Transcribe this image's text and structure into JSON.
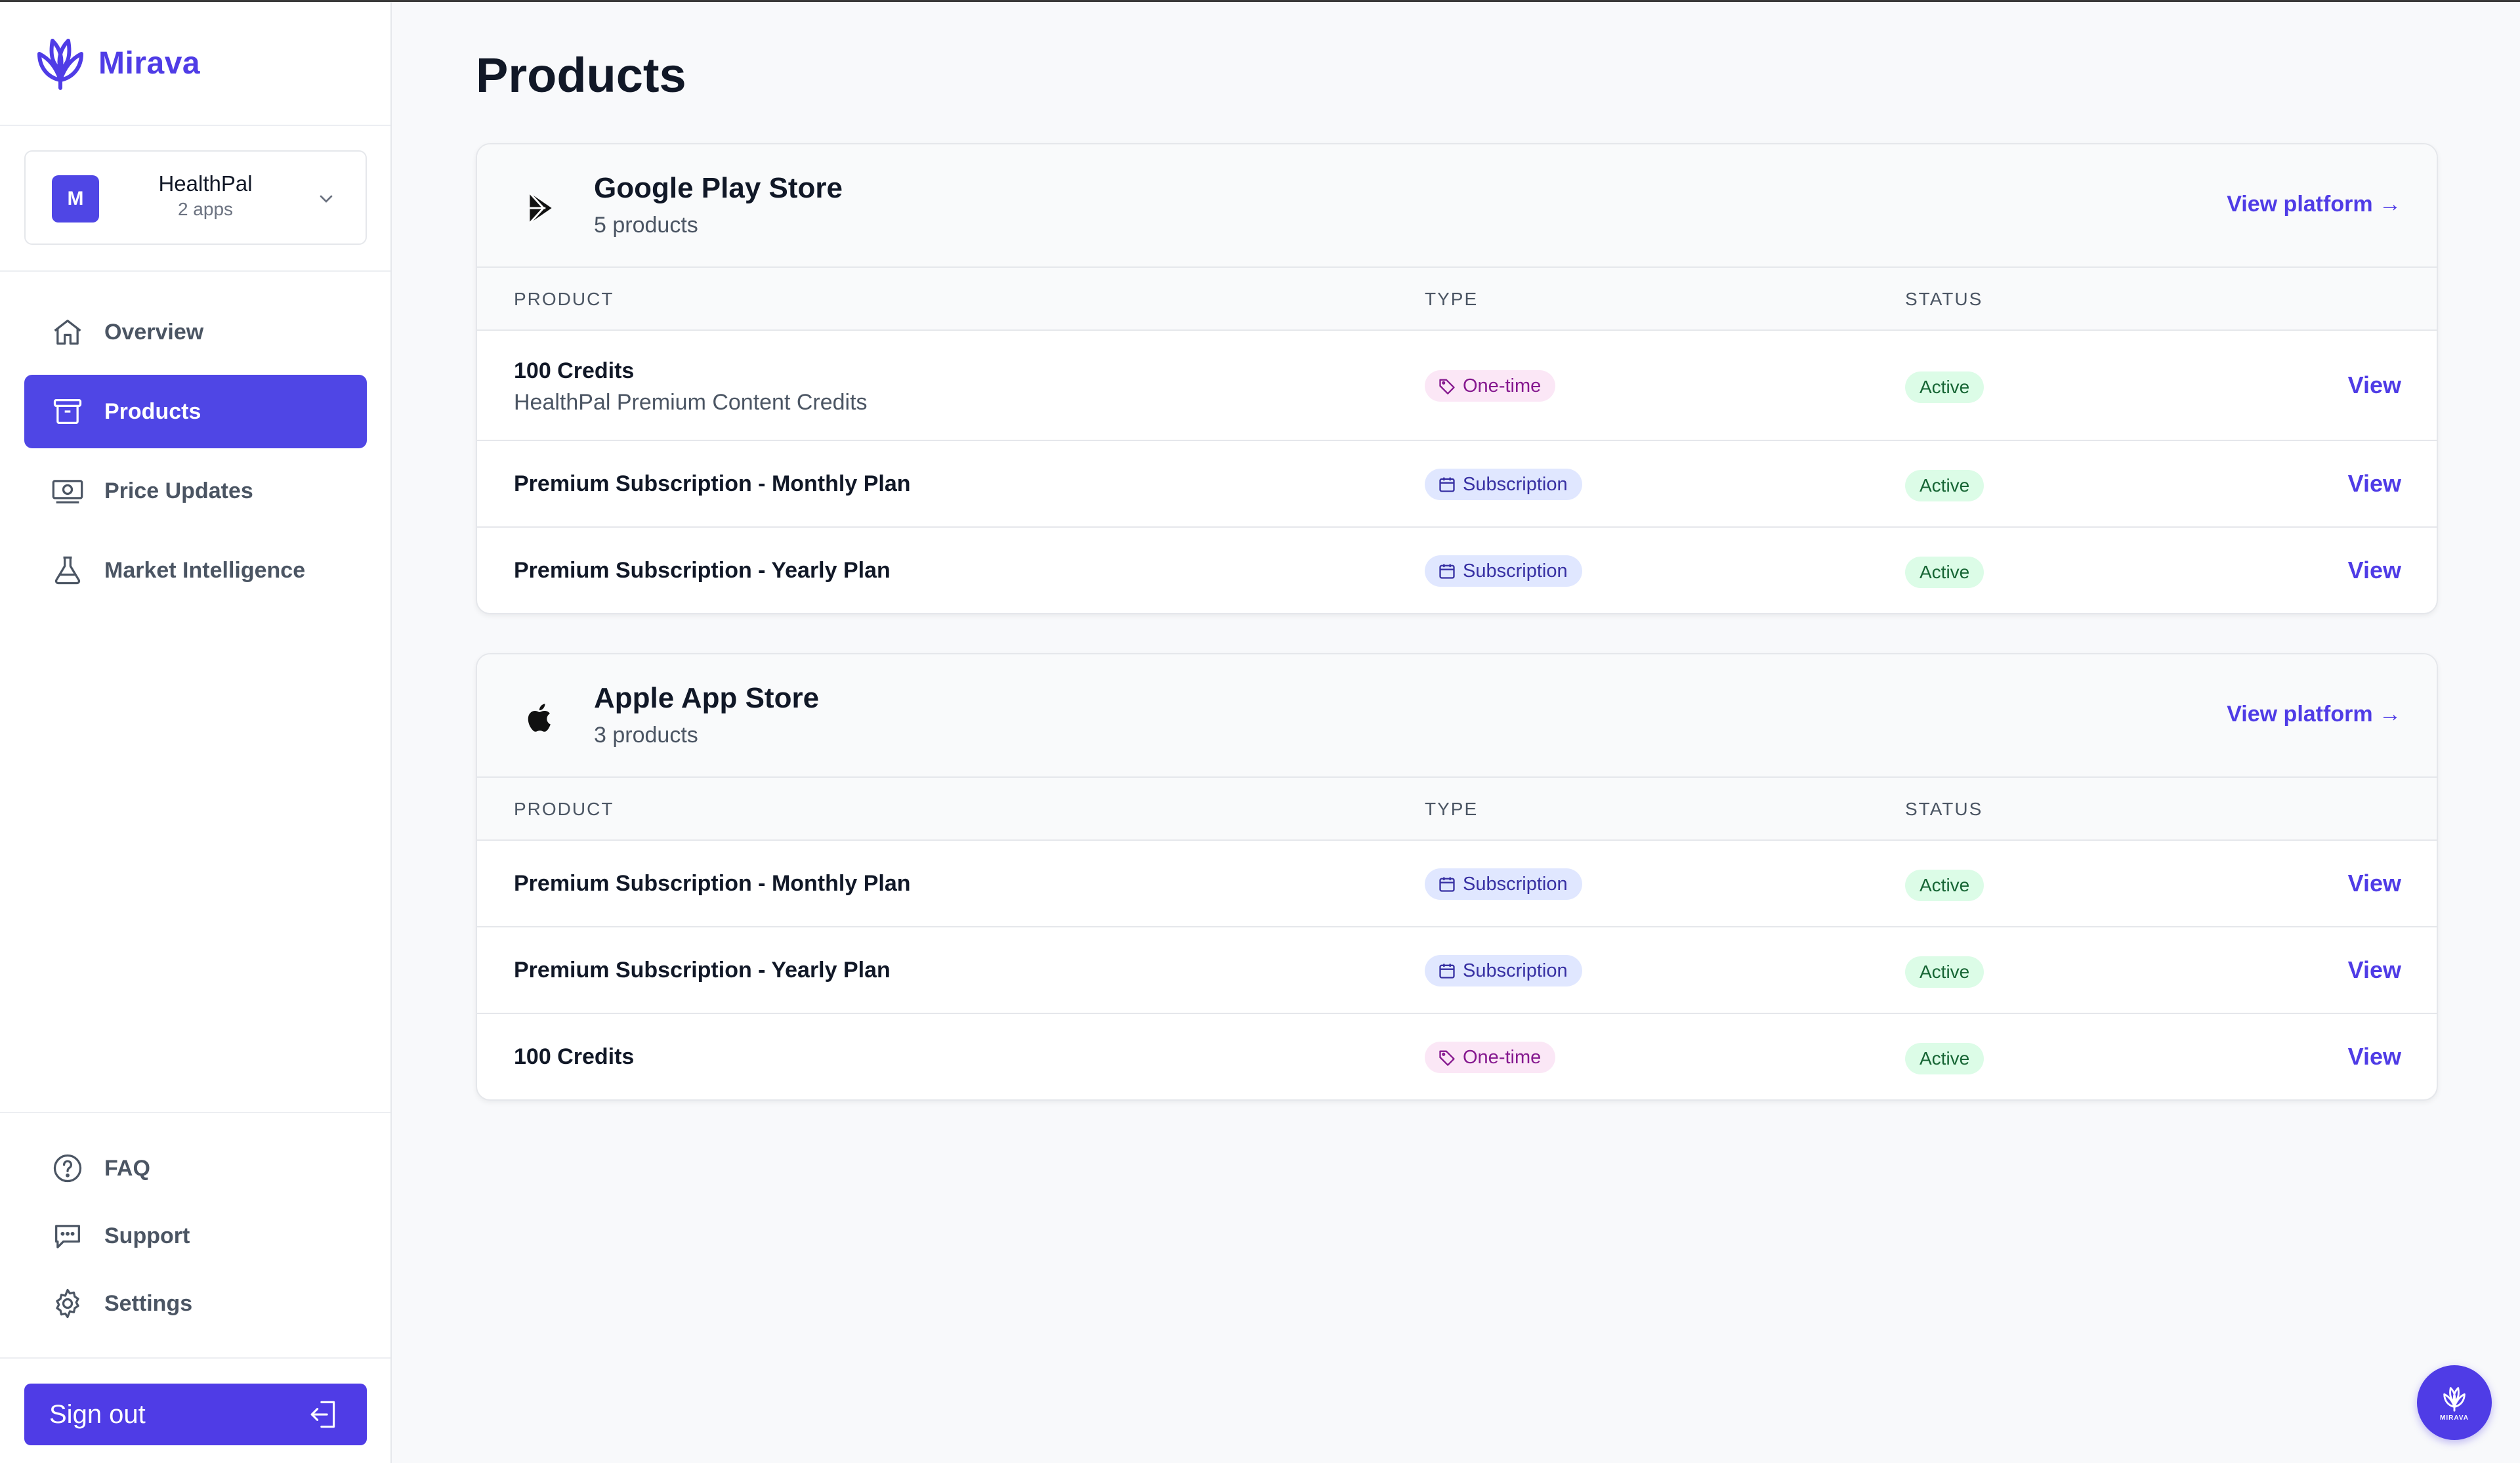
{
  "app": {
    "brand": "Mirava"
  },
  "sidebar": {
    "app_switcher": {
      "avatar_letter": "M",
      "name": "HealthPal",
      "count": "2 apps"
    },
    "nav": [
      {
        "label": "Overview",
        "icon": "home-icon"
      },
      {
        "label": "Products",
        "icon": "archive-box-icon",
        "active": true
      },
      {
        "label": "Price Updates",
        "icon": "banknote-icon"
      },
      {
        "label": "Market Intelligence",
        "icon": "flask-icon"
      }
    ],
    "bottom_nav": [
      {
        "label": "FAQ",
        "icon": "question-circle-icon"
      },
      {
        "label": "Support",
        "icon": "chat-bubble-icon"
      },
      {
        "label": "Settings",
        "icon": "gear-icon"
      }
    ],
    "sign_out": "Sign out"
  },
  "main": {
    "title": "Products",
    "columns": {
      "product": "PRODUCT",
      "type": "TYPE",
      "status": "STATUS"
    },
    "platforms": [
      {
        "name": "Google Play Store",
        "count": "5 products",
        "icon": "google-play-icon",
        "link": "View platform →",
        "rows": [
          {
            "name": "100 Credits",
            "sub": "HealthPal Premium Content Credits",
            "type": "One-time",
            "status": "Active",
            "action": "View"
          },
          {
            "name": "Premium Subscription - Monthly Plan",
            "type": "Subscription",
            "status": "Active",
            "action": "View"
          },
          {
            "name": "Premium Subscription - Yearly Plan",
            "type": "Subscription",
            "status": "Active",
            "action": "View"
          }
        ]
      },
      {
        "name": "Apple App Store",
        "count": "3 products",
        "icon": "apple-icon",
        "link": "View platform →",
        "rows": [
          {
            "name": "Premium Subscription - Monthly Plan",
            "type": "Subscription",
            "status": "Active",
            "action": "View"
          },
          {
            "name": "Premium Subscription - Yearly Plan",
            "type": "Subscription",
            "status": "Active",
            "action": "View"
          },
          {
            "name": "100 Credits",
            "type": "One-time",
            "status": "Active",
            "action": "View"
          }
        ]
      }
    ]
  },
  "fab": {
    "label": "MIRAVA"
  },
  "colors": {
    "accent": "#4f3ce6",
    "active_bg": "#dcfce7",
    "subscription_bg": "#e0e7ff",
    "onetime_bg": "#fbe7f6"
  }
}
